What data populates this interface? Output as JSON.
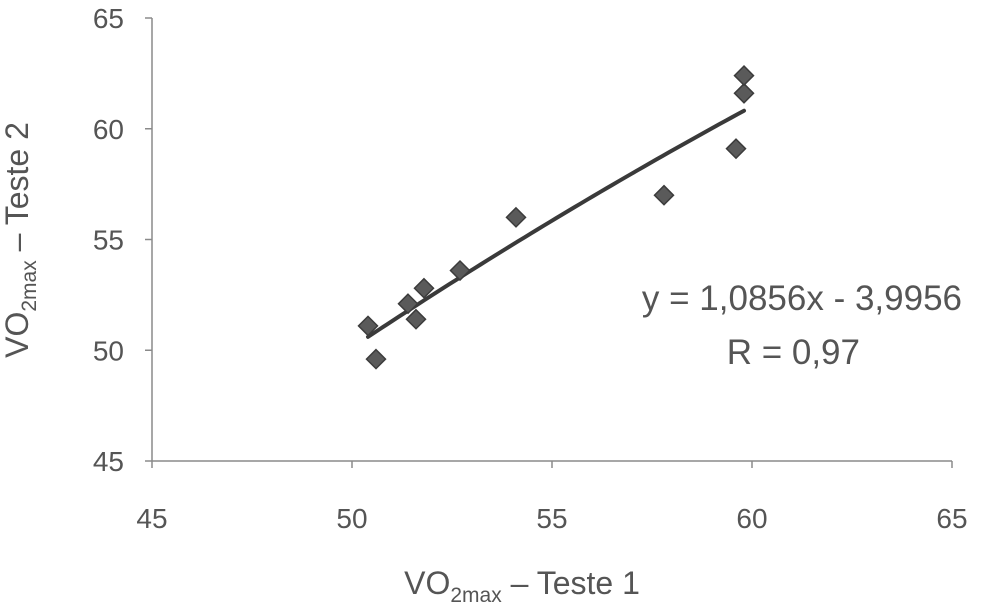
{
  "chart_data": {
    "type": "scatter",
    "xlabel": {
      "base": "VO",
      "sub": "2max",
      "rest": " – Teste 1"
    },
    "ylabel": {
      "base": "VO",
      "sub": "2max",
      "rest": " – Teste 2"
    },
    "xlim": [
      45,
      65
    ],
    "ylim": [
      45,
      65
    ],
    "x_ticks": [
      "45",
      "50",
      "55",
      "60",
      "65"
    ],
    "y_ticks": [
      "45",
      "50",
      "55",
      "60",
      "65"
    ],
    "grid": false,
    "legend": "none",
    "points": {
      "x": [
        50.4,
        50.6,
        51.4,
        51.6,
        51.8,
        52.7,
        54.1,
        57.8,
        59.6,
        59.8,
        59.8
      ],
      "y": [
        51.1,
        49.6,
        52.1,
        51.4,
        52.8,
        53.6,
        56.0,
        57.0,
        59.1,
        61.6,
        62.4
      ]
    },
    "trendline": {
      "type": "polynomial",
      "x_range": [
        50.4,
        59.8
      ]
    },
    "annotations": {
      "equation": "y = 1,0856x - 3,9956",
      "r_value": "R  = 0,97"
    },
    "colors": {
      "marker": "#5a5a5a",
      "marker_edge": "#3c3c3c",
      "line": "#3a3a3a",
      "axis": "#8a8a8a",
      "text": "#555555"
    }
  }
}
